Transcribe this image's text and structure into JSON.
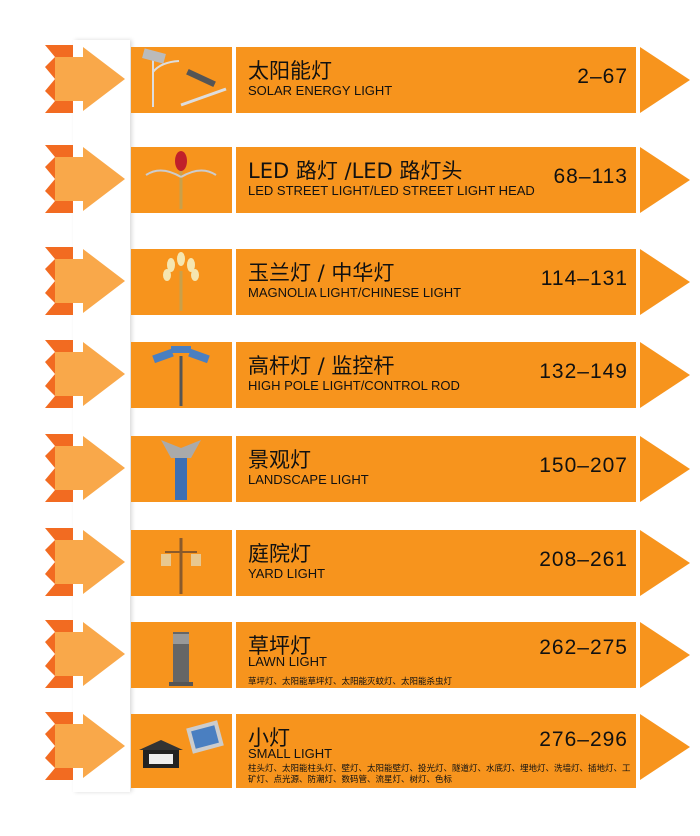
{
  "colors": {
    "accent": "#F7941D",
    "arrow": "#F9A84A",
    "arrow_dark": "#F26B21"
  },
  "sections": [
    {
      "zh": "太阳能灯",
      "en": "SOLAR ENERGY LIGHT",
      "pages": "2–67",
      "image": "solar-street-light"
    },
    {
      "zh": "LED 路灯 /LED 路灯头",
      "en": "LED STREET LIGHT/LED STREET LIGHT HEAD",
      "pages": "68–113",
      "image": "led-street-light"
    },
    {
      "zh": "玉兰灯 / 中华灯",
      "en": "MAGNOLIA LIGHT/CHINESE LIGHT",
      "pages": "114–131",
      "image": "magnolia-light"
    },
    {
      "zh": "高杆灯 / 监控杆",
      "en": "HIGH POLE LIGHT/CONTROL ROD",
      "pages": "132–149",
      "image": "high-pole-light"
    },
    {
      "zh": "景观灯",
      "en": "LANDSCAPE LIGHT",
      "pages": "150–207",
      "image": "landscape-light"
    },
    {
      "zh": "庭院灯",
      "en": "YARD LIGHT",
      "pages": "208–261",
      "image": "yard-light"
    },
    {
      "zh": "草坪灯",
      "en": "LAWN LIGHT",
      "pages": "262–275",
      "image": "lawn-light",
      "sub": "草坪灯、太阳能草坪灯、太阳能灭蚊灯、太阳能杀虫灯"
    },
    {
      "zh": "小灯",
      "en": "SMALL LIGHT",
      "pages": "276–296",
      "image": "small-light",
      "sub": "柱头灯、太阳能柱头灯、壁灯、太阳能壁灯、投光灯、隧道灯、水底灯、埋地灯、洗墙灯、插地灯、工矿灯、点光源、防潮灯、数码管、流星灯、树灯、色标"
    }
  ]
}
